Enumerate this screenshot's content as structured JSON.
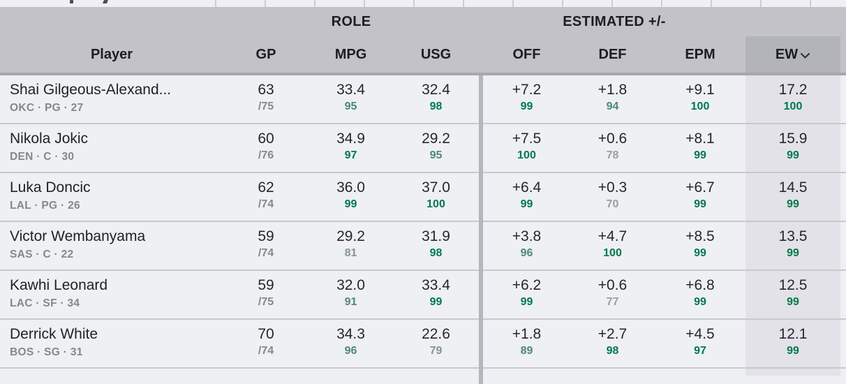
{
  "header": {
    "groups": {
      "role": "ROLE",
      "estimated": "ESTIMATED +/-"
    },
    "columns": {
      "player": "Player",
      "gp": "GP",
      "mpg": "MPG",
      "usg": "USG",
      "off": "OFF",
      "def": "DEF",
      "epm": "EPM",
      "ew": "EW"
    },
    "sorted_by": "EW",
    "sort_direction": "desc",
    "sort_icon": "chevron-down"
  },
  "rows": [
    {
      "player": "Shai Gilgeous-Alexand...",
      "meta": "OKC · PG · 27",
      "stats": {
        "gp": {
          "value": "63",
          "sub": "/75",
          "sub_kind": "frac"
        },
        "mpg": {
          "value": "33.4",
          "pct": 95
        },
        "usg": {
          "value": "32.4",
          "pct": 98
        },
        "off": {
          "value": "+7.2",
          "pct": 99
        },
        "def": {
          "value": "+1.8",
          "pct": 94
        },
        "epm": {
          "value": "+9.1",
          "pct": 100
        },
        "ew": {
          "value": "17.2",
          "pct": 100
        }
      }
    },
    {
      "player": "Nikola Jokic",
      "meta": "DEN · C · 30",
      "stats": {
        "gp": {
          "value": "60",
          "sub": "/76",
          "sub_kind": "frac"
        },
        "mpg": {
          "value": "34.9",
          "pct": 97
        },
        "usg": {
          "value": "29.2",
          "pct": 95
        },
        "off": {
          "value": "+7.5",
          "pct": 100
        },
        "def": {
          "value": "+0.6",
          "pct": 78
        },
        "epm": {
          "value": "+8.1",
          "pct": 99
        },
        "ew": {
          "value": "15.9",
          "pct": 99
        }
      }
    },
    {
      "player": "Luka Doncic",
      "meta": "LAL · PG · 26",
      "stats": {
        "gp": {
          "value": "62",
          "sub": "/74",
          "sub_kind": "frac"
        },
        "mpg": {
          "value": "36.0",
          "pct": 99
        },
        "usg": {
          "value": "37.0",
          "pct": 100
        },
        "off": {
          "value": "+6.4",
          "pct": 99
        },
        "def": {
          "value": "+0.3",
          "pct": 70
        },
        "epm": {
          "value": "+6.7",
          "pct": 99
        },
        "ew": {
          "value": "14.5",
          "pct": 99
        }
      }
    },
    {
      "player": "Victor Wembanyama",
      "meta": "SAS · C · 22",
      "stats": {
        "gp": {
          "value": "59",
          "sub": "/74",
          "sub_kind": "frac"
        },
        "mpg": {
          "value": "29.2",
          "pct": 81
        },
        "usg": {
          "value": "31.9",
          "pct": 98
        },
        "off": {
          "value": "+3.8",
          "pct": 96
        },
        "def": {
          "value": "+4.7",
          "pct": 100
        },
        "epm": {
          "value": "+8.5",
          "pct": 99
        },
        "ew": {
          "value": "13.5",
          "pct": 99
        }
      }
    },
    {
      "player": "Kawhi Leonard",
      "meta": "LAC · SF · 34",
      "stats": {
        "gp": {
          "value": "59",
          "sub": "/75",
          "sub_kind": "frac"
        },
        "mpg": {
          "value": "32.0",
          "pct": 91
        },
        "usg": {
          "value": "33.4",
          "pct": 99
        },
        "off": {
          "value": "+6.2",
          "pct": 99
        },
        "def": {
          "value": "+0.6",
          "pct": 77
        },
        "epm": {
          "value": "+6.8",
          "pct": 99
        },
        "ew": {
          "value": "12.5",
          "pct": 99
        }
      }
    },
    {
      "player": "Derrick White",
      "meta": "BOS · SG · 31",
      "stats": {
        "gp": {
          "value": "70",
          "sub": "/74",
          "sub_kind": "frac"
        },
        "mpg": {
          "value": "34.3",
          "pct": 96
        },
        "usg": {
          "value": "22.6",
          "pct": 79
        },
        "off": {
          "value": "+1.8",
          "pct": 89
        },
        "def": {
          "value": "+2.7",
          "pct": 98
        },
        "epm": {
          "value": "+4.5",
          "pct": 97
        },
        "ew": {
          "value": "12.1",
          "pct": 99
        }
      }
    }
  ],
  "colors": {
    "pct_high": "#00784c",
    "pct_mid": "#4e8a6e",
    "pct_low": "#82968c",
    "pct_muted": "#9a9da2",
    "header_bg": "#c2c2c8",
    "sorted_header_bg": "#b3b3ba",
    "sorted_cell_bg": "#e2e2e8",
    "row_bg": "#eef0f3"
  },
  "pct_thresholds": {
    "high": 97,
    "mid": 85,
    "low": 79
  }
}
